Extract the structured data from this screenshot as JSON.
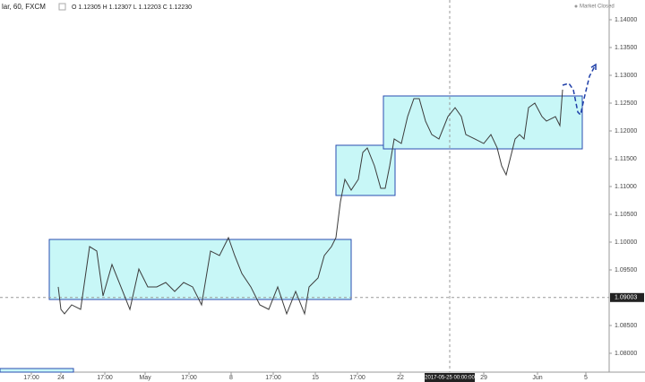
{
  "header": {
    "symbol": "lar, 60, FXCM",
    "ohlc": "O 1.12305 H 1.12307 L 1.12203 C 1.12230",
    "status": "Market Closed"
  },
  "chart_data": {
    "type": "line",
    "x": [
      65,
      68,
      72,
      80,
      90,
      100,
      108,
      115,
      125,
      135,
      145,
      155,
      165,
      175,
      185,
      195,
      205,
      215,
      225,
      235,
      245,
      255,
      262,
      270,
      280,
      290,
      300,
      310,
      320,
      330,
      340,
      345,
      355,
      362,
      370,
      375,
      380,
      385,
      392,
      400,
      405,
      410,
      418,
      425,
      430,
      435,
      440,
      448,
      455,
      462,
      468,
      475,
      482,
      490,
      500,
      508,
      515,
      520,
      530,
      540,
      548,
      555,
      560,
      565,
      570,
      575,
      580,
      585,
      590,
      597,
      605,
      610,
      620,
      625,
      628
    ],
    "series": [
      {
        "color": "#3c3c3c",
        "values": [
          1.09194,
          1.0879,
          1.0871,
          1.08871,
          1.0879,
          1.09919,
          1.09839,
          1.09032,
          1.09597,
          1.09194,
          1.0879,
          1.09516,
          1.09194,
          1.09194,
          1.09274,
          1.09113,
          1.09274,
          1.09194,
          1.08871,
          1.09839,
          1.09758,
          1.10081,
          1.09758,
          1.09435,
          1.09194,
          1.08871,
          1.0879,
          1.09194,
          1.0871,
          1.09113,
          1.0871,
          1.09194,
          1.09355,
          1.09758,
          1.09919,
          1.10081,
          1.10726,
          1.11129,
          1.10935,
          1.11129,
          1.11613,
          1.11694,
          1.11371,
          1.10968,
          1.10968,
          1.11371,
          1.11855,
          1.11774,
          1.12258,
          1.12581,
          1.12581,
          1.12177,
          1.11935,
          1.11855,
          1.12258,
          1.12419,
          1.12258,
          1.11935,
          1.11855,
          1.11774,
          1.11935,
          1.11694,
          1.11371,
          1.1121,
          1.11532,
          1.11855,
          1.11935,
          1.11855,
          1.12419,
          1.125,
          1.12258,
          1.12177,
          1.12258,
          1.12097,
          1.12742
        ]
      }
    ],
    "forecast": {
      "color": "#1f3fa8",
      "x": [
        628,
        635,
        640,
        645,
        648,
        652,
        658,
        665
      ],
      "values": [
        1.12823,
        1.12855,
        1.12742,
        1.12339,
        1.1229,
        1.12581,
        1.12984,
        1.13194
      ]
    },
    "boxes": {
      "fill": "#c8f7f7",
      "stroke": "#2a4db0",
      "items": [
        {
          "x": [
            55,
            392
          ],
          "y": [
            1.10048,
            1.08968
          ]
        },
        {
          "x": [
            375,
            441
          ],
          "y": [
            1.11742,
            1.10839
          ]
        },
        {
          "x": [
            428,
            650
          ],
          "y": [
            1.12629,
            1.11677
          ]
        },
        {
          "x": [
            0,
            82
          ],
          "y": [
            1.07726,
            1.07661
          ]
        }
      ]
    },
    "crosshair": {
      "x": 502,
      "x_label": "2017-05-25 00:00:00",
      "y": 1.09003
    },
    "xlim": [
      0,
      680
    ],
    "ylim": [
      1.07661,
      1.14355
    ],
    "xticks": [
      {
        "value": 35,
        "label": "17:00"
      },
      {
        "value": 68,
        "label": "24"
      },
      {
        "value": 117,
        "label": "17:00"
      },
      {
        "value": 162,
        "label": "May"
      },
      {
        "value": 211,
        "label": "17:00"
      },
      {
        "value": 258,
        "label": "8"
      },
      {
        "value": 305,
        "label": "17:00"
      },
      {
        "value": 352,
        "label": "15"
      },
      {
        "value": 399,
        "label": "17:00"
      },
      {
        "value": 447,
        "label": "22"
      },
      {
        "value": 540,
        "label": "29"
      },
      {
        "value": 600,
        "label": "Jun"
      },
      {
        "value": 654,
        "label": "5"
      }
    ],
    "yticks": [
      {
        "value": 1.14,
        "label": "1.14000"
      },
      {
        "value": 1.135,
        "label": "1.13500"
      },
      {
        "value": 1.13,
        "label": "1.13000"
      },
      {
        "value": 1.125,
        "label": "1.12500"
      },
      {
        "value": 1.12,
        "label": "1.12000"
      },
      {
        "value": 1.115,
        "label": "1.11500"
      },
      {
        "value": 1.11,
        "label": "1.11000"
      },
      {
        "value": 1.105,
        "label": "1.10500"
      },
      {
        "value": 1.1,
        "label": "1.10000"
      },
      {
        "value": 1.095,
        "label": "1.09500"
      },
      {
        "value": 1.085,
        "label": "1.08500"
      },
      {
        "value": 1.08,
        "label": "1.08000"
      }
    ]
  }
}
